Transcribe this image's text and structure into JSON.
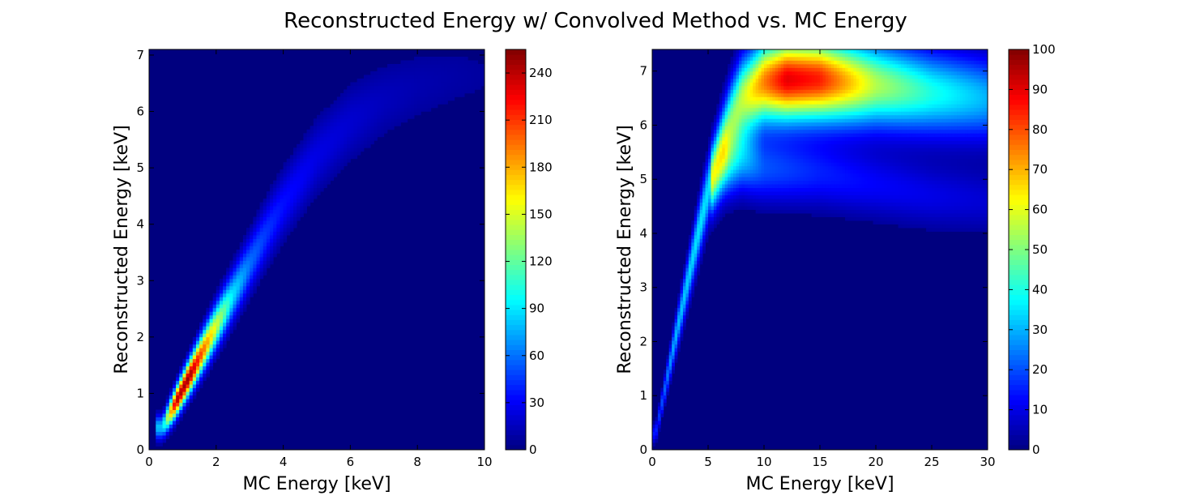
{
  "figure": {
    "title": "Reconstructed Energy w/ Convolved Method vs. MC Energy"
  },
  "chart_data": [
    {
      "type": "heatmap",
      "xlabel": "MC Energy [keV]",
      "ylabel": "Reconstructed Energy [keV]",
      "xlim": [
        0,
        10
      ],
      "ylim": [
        0,
        7.1
      ],
      "xticks": [
        "0",
        "2",
        "4",
        "6",
        "8",
        "10"
      ],
      "yticks": [
        "0",
        "1",
        "2",
        "3",
        "4",
        "5",
        "6",
        "7"
      ],
      "colormap": "jet",
      "colorbar": {
        "range": [
          0,
          255
        ],
        "ticks": [
          "0",
          "30",
          "60",
          "90",
          "120",
          "150",
          "180",
          "210",
          "240"
        ]
      },
      "ridge": {
        "x": [
          0.4,
          0.8,
          1.2,
          1.6,
          2.0,
          2.5,
          3.0,
          3.5,
          4.0,
          5.0,
          6.0,
          7.0,
          8.0,
          9.0,
          10.0
        ],
        "y": [
          0.4,
          0.85,
          1.3,
          1.75,
          2.2,
          2.75,
          3.3,
          3.85,
          4.35,
          5.2,
          5.8,
          6.2,
          6.45,
          6.6,
          6.65
        ],
        "peak_counts": [
          80,
          240,
          250,
          200,
          150,
          90,
          60,
          45,
          35,
          25,
          20,
          15,
          12,
          10,
          8
        ]
      }
    },
    {
      "type": "heatmap",
      "xlabel": "MC Energy [keV]",
      "ylabel": "Reconstructed Energy [keV]",
      "xlim": [
        0,
        30
      ],
      "ylim": [
        0,
        7.4
      ],
      "xticks": [
        "0",
        "5",
        "10",
        "15",
        "20",
        "25",
        "30"
      ],
      "yticks": [
        "0",
        "1",
        "2",
        "3",
        "4",
        "5",
        "6",
        "7"
      ],
      "colormap": "jet",
      "colorbar": {
        "range": [
          0,
          100
        ],
        "ticks": [
          "0",
          "10",
          "20",
          "30",
          "40",
          "50",
          "60",
          "70",
          "80",
          "90",
          "100"
        ]
      },
      "upper_band": {
        "x": [
          0.3,
          2,
          4,
          5,
          6,
          7,
          8,
          10,
          12,
          15,
          20,
          25,
          30
        ],
        "y": [
          0.3,
          2.0,
          3.9,
          4.8,
          5.5,
          6.1,
          6.5,
          6.8,
          6.85,
          6.85,
          6.75,
          6.6,
          6.5
        ],
        "peak_counts": [
          15,
          30,
          35,
          35,
          40,
          45,
          55,
          75,
          90,
          85,
          55,
          40,
          30
        ]
      },
      "lower_band": {
        "x": [
          5.5,
          6.5,
          8,
          10,
          15,
          20,
          25,
          30
        ],
        "y": [
          5.0,
          5.3,
          5.4,
          5.2,
          5.1,
          4.9,
          4.7,
          4.6
        ],
        "peak_counts": [
          25,
          35,
          30,
          20,
          15,
          12,
          10,
          8
        ]
      }
    }
  ]
}
